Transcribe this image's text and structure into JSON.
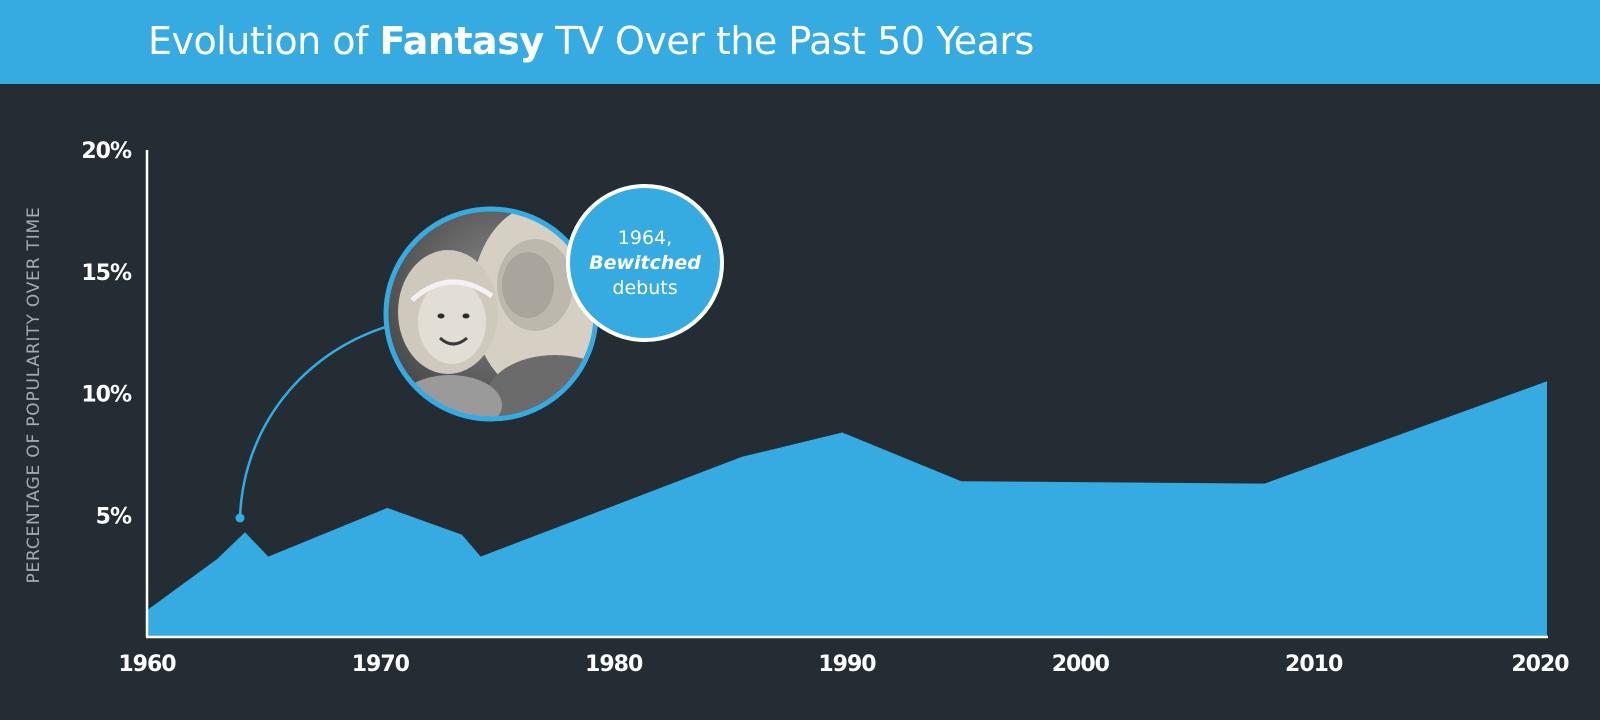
{
  "header": {
    "title_prefix": "Evolution of ",
    "title_bold": "Fantasy",
    "title_suffix": " TV Over the Past 50 Years"
  },
  "colors": {
    "background": "#232d33",
    "accent": "#35abe2",
    "axis": "#ffffff"
  },
  "chart_data": {
    "type": "area",
    "title": "Evolution of Fantasy TV Over the Past 50 Years",
    "ylabel": "PERCENTAGE OF POPULARITY OVER TIME",
    "xlabel": "",
    "xlim": [
      1960,
      2020
    ],
    "ylim": [
      0,
      20
    ],
    "x_ticks": [
      "1960",
      "1970",
      "1980",
      "1990",
      "2000",
      "2010",
      "2020"
    ],
    "y_ticks": [
      "5%",
      "10%",
      "15%",
      "20%"
    ],
    "y_tick_values": [
      5,
      10,
      15,
      20
    ],
    "grid": false,
    "series": [
      {
        "x": [
          1960,
          1963,
          1964.2,
          1965.2,
          1970.3,
          1973.5,
          1974.3,
          1985.5,
          1989.8,
          1994.9,
          2007.9,
          2020
        ],
        "values": [
          1.1,
          3.2,
          4.3,
          3.3,
          5.3,
          4.2,
          3.3,
          7.4,
          8.4,
          6.4,
          6.3,
          10.5
        ]
      }
    ],
    "annotations": [
      {
        "x": 1964,
        "y": 4.9,
        "line1": "1964,",
        "line2": "Bewitched",
        "line3": "debuts"
      }
    ]
  }
}
